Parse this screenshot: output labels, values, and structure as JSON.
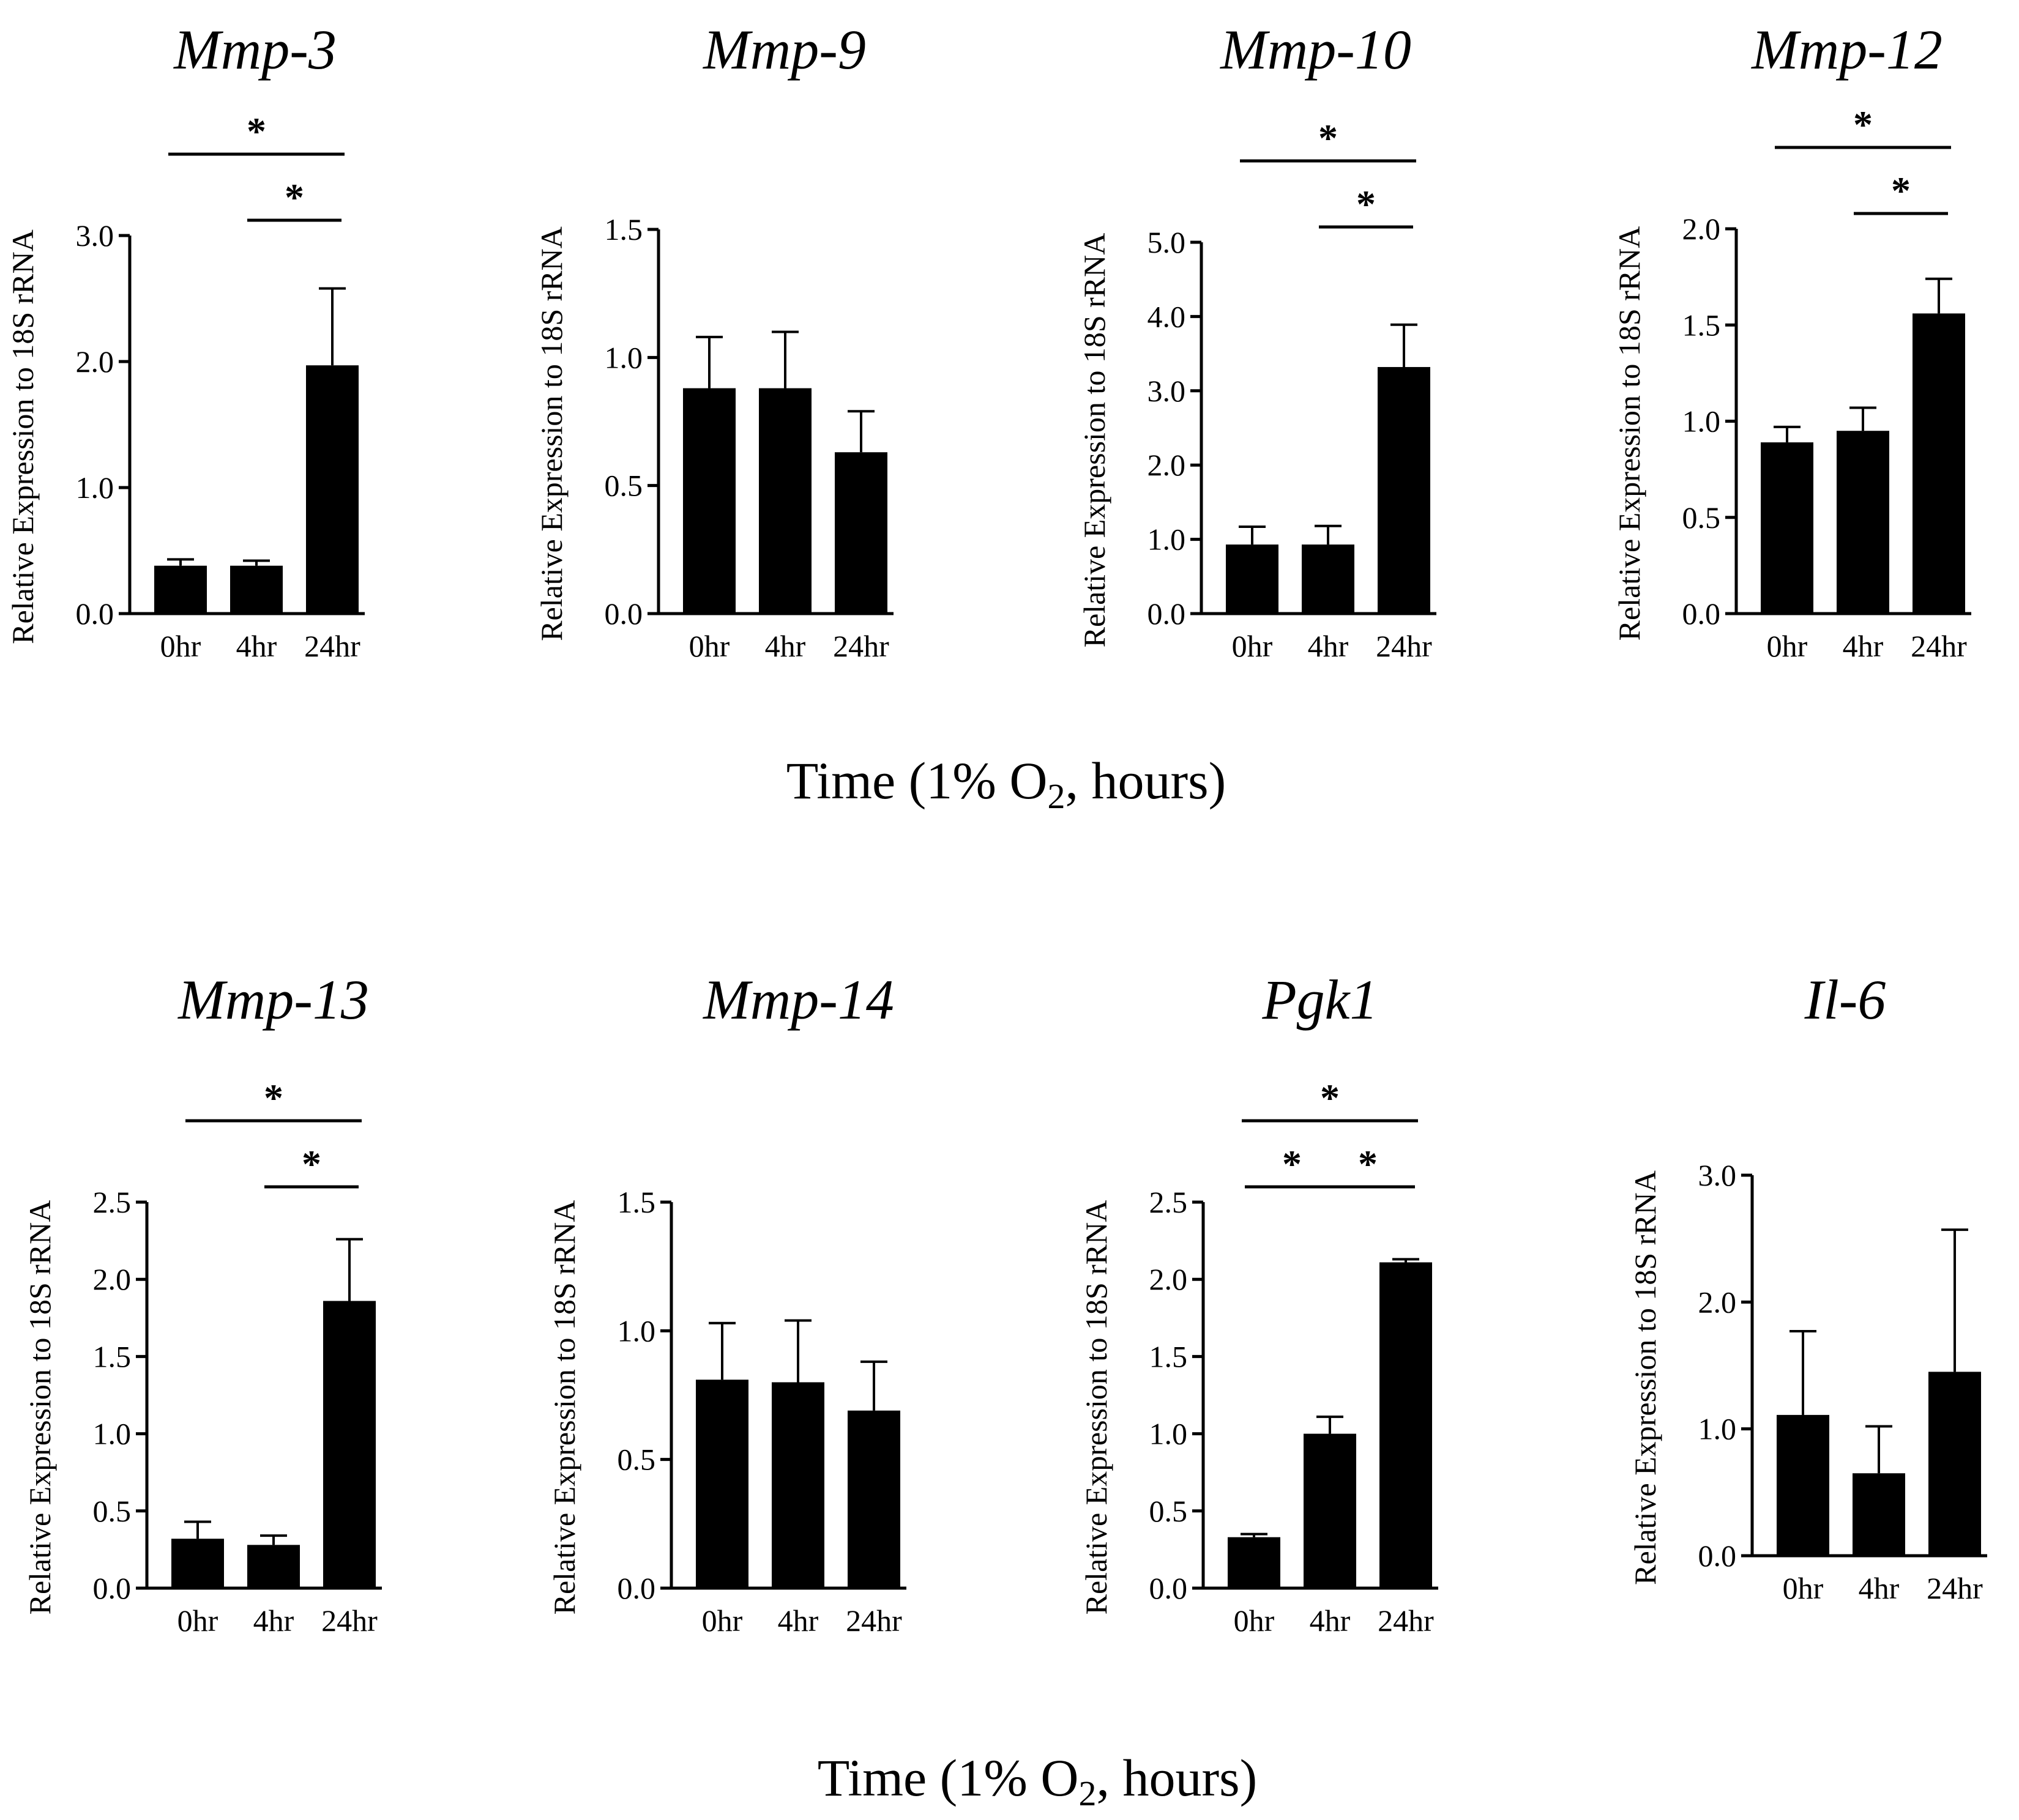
{
  "figure": {
    "x_axis_label": "Time (1% O",
    "x_axis_label_subscript": "2",
    "x_axis_label_suffix": ", hours)",
    "bar_color": "#000000"
  },
  "chart_data": [
    {
      "type": "bar",
      "title": "Mmp-3",
      "ylabel": "Relative Expression to 18S rRNA",
      "xlabel": "",
      "categories": [
        "0hr",
        "4hr",
        "24hr"
      ],
      "values": [
        0.38,
        0.38,
        1.97
      ],
      "errors": [
        0.05,
        0.04,
        0.61
      ],
      "ylim": [
        0,
        3.0
      ],
      "yticks": [
        0.0,
        1.0,
        2.0,
        3.0
      ],
      "tick_labels": [
        "0.0",
        "1.0",
        "2.0",
        "3.0"
      ],
      "significance": [
        {
          "from": 0,
          "to": 2,
          "label": "*"
        },
        {
          "from": 1,
          "to": 2,
          "label": "*"
        }
      ]
    },
    {
      "type": "bar",
      "title": "Mmp-9",
      "ylabel": "Relative Expression to 18S rRNA",
      "xlabel": "",
      "categories": [
        "0hr",
        "4hr",
        "24hr"
      ],
      "values": [
        0.88,
        0.88,
        0.63
      ],
      "errors": [
        0.2,
        0.22,
        0.16
      ],
      "ylim": [
        0,
        1.5
      ],
      "yticks": [
        0.0,
        0.5,
        1.0,
        1.5
      ],
      "tick_labels": [
        "0.0",
        "0.5",
        "1.0",
        "1.5"
      ],
      "significance": []
    },
    {
      "type": "bar",
      "title": "Mmp-10",
      "ylabel": "Relative Expression to 18S rRNA",
      "xlabel": "",
      "categories": [
        "0hr",
        "4hr",
        "24hr"
      ],
      "values": [
        0.93,
        0.93,
        3.32
      ],
      "errors": [
        0.24,
        0.25,
        0.57
      ],
      "ylim": [
        0,
        5.0
      ],
      "yticks": [
        0.0,
        1.0,
        2.0,
        3.0,
        4.0,
        5.0
      ],
      "tick_labels": [
        "0.0",
        "1.0",
        "2.0",
        "3.0",
        "4.0",
        "5.0"
      ],
      "significance": [
        {
          "from": 0,
          "to": 2,
          "label": "*"
        },
        {
          "from": 1,
          "to": 2,
          "label": "*"
        }
      ]
    },
    {
      "type": "bar",
      "title": "Mmp-12",
      "ylabel": "Relative Expression to 18S rRNA",
      "xlabel": "",
      "categories": [
        "0hr",
        "4hr",
        "24hr"
      ],
      "values": [
        0.89,
        0.95,
        1.56
      ],
      "errors": [
        0.08,
        0.12,
        0.18
      ],
      "ylim": [
        0,
        2.0
      ],
      "yticks": [
        0.0,
        0.5,
        1.0,
        1.5,
        2.0
      ],
      "tick_labels": [
        "0.0",
        "0.5",
        "1.0",
        "1.5",
        "2.0"
      ],
      "significance": [
        {
          "from": 0,
          "to": 2,
          "label": "*"
        },
        {
          "from": 1,
          "to": 2,
          "label": "*"
        }
      ]
    },
    {
      "type": "bar",
      "title": "Mmp-13",
      "ylabel": "Relative Expression to 18S rRNA",
      "xlabel": "",
      "categories": [
        "0hr",
        "4hr",
        "24hr"
      ],
      "values": [
        0.32,
        0.28,
        1.86
      ],
      "errors": [
        0.11,
        0.06,
        0.4
      ],
      "ylim": [
        0,
        2.5
      ],
      "yticks": [
        0.0,
        0.5,
        1.0,
        1.5,
        2.0,
        2.5
      ],
      "tick_labels": [
        "0.0",
        "0.5",
        "1.0",
        "1.5",
        "2.0",
        "2.5"
      ],
      "significance": [
        {
          "from": 0,
          "to": 2,
          "label": "*"
        },
        {
          "from": 1,
          "to": 2,
          "label": "*"
        }
      ]
    },
    {
      "type": "bar",
      "title": "Mmp-14",
      "ylabel": "Relative Expression to 18S rRNA",
      "xlabel": "",
      "categories": [
        "0hr",
        "4hr",
        "24hr"
      ],
      "values": [
        0.81,
        0.8,
        0.69
      ],
      "errors": [
        0.22,
        0.24,
        0.19
      ],
      "ylim": [
        0,
        1.5
      ],
      "yticks": [
        0.0,
        0.5,
        1.0,
        1.5
      ],
      "tick_labels": [
        "0.0",
        "0.5",
        "1.0",
        "1.5"
      ],
      "significance": []
    },
    {
      "type": "bar",
      "title": "Pgk1",
      "ylabel": "Relative Expression to 18S rRNA",
      "xlabel": "",
      "categories": [
        "0hr",
        "4hr",
        "24hr"
      ],
      "values": [
        0.33,
        1.0,
        2.11
      ],
      "errors": [
        0.02,
        0.11,
        0.02
      ],
      "ylim": [
        0,
        2.5
      ],
      "yticks": [
        0.0,
        0.5,
        1.0,
        1.5,
        2.0,
        2.5
      ],
      "tick_labels": [
        "0.0",
        "0.5",
        "1.0",
        "1.5",
        "2.0",
        "2.5"
      ],
      "significance": [
        {
          "from": 0,
          "to": 2,
          "label": "*"
        },
        {
          "from": 0,
          "to": 1,
          "label": "*"
        },
        {
          "from": 1,
          "to": 2,
          "label": "*"
        }
      ]
    },
    {
      "type": "bar",
      "title": "Il-6",
      "ylabel": "Relative Expression to 18S rRNA",
      "xlabel": "",
      "categories": [
        "0hr",
        "4hr",
        "24hr"
      ],
      "values": [
        1.11,
        0.65,
        1.45
      ],
      "errors": [
        0.66,
        0.37,
        1.12
      ],
      "ylim": [
        0,
        3.0
      ],
      "yticks": [
        0.0,
        1.0,
        2.0,
        3.0
      ],
      "tick_labels": [
        "0.0",
        "1.0",
        "2.0",
        "3.0"
      ],
      "significance": []
    }
  ]
}
